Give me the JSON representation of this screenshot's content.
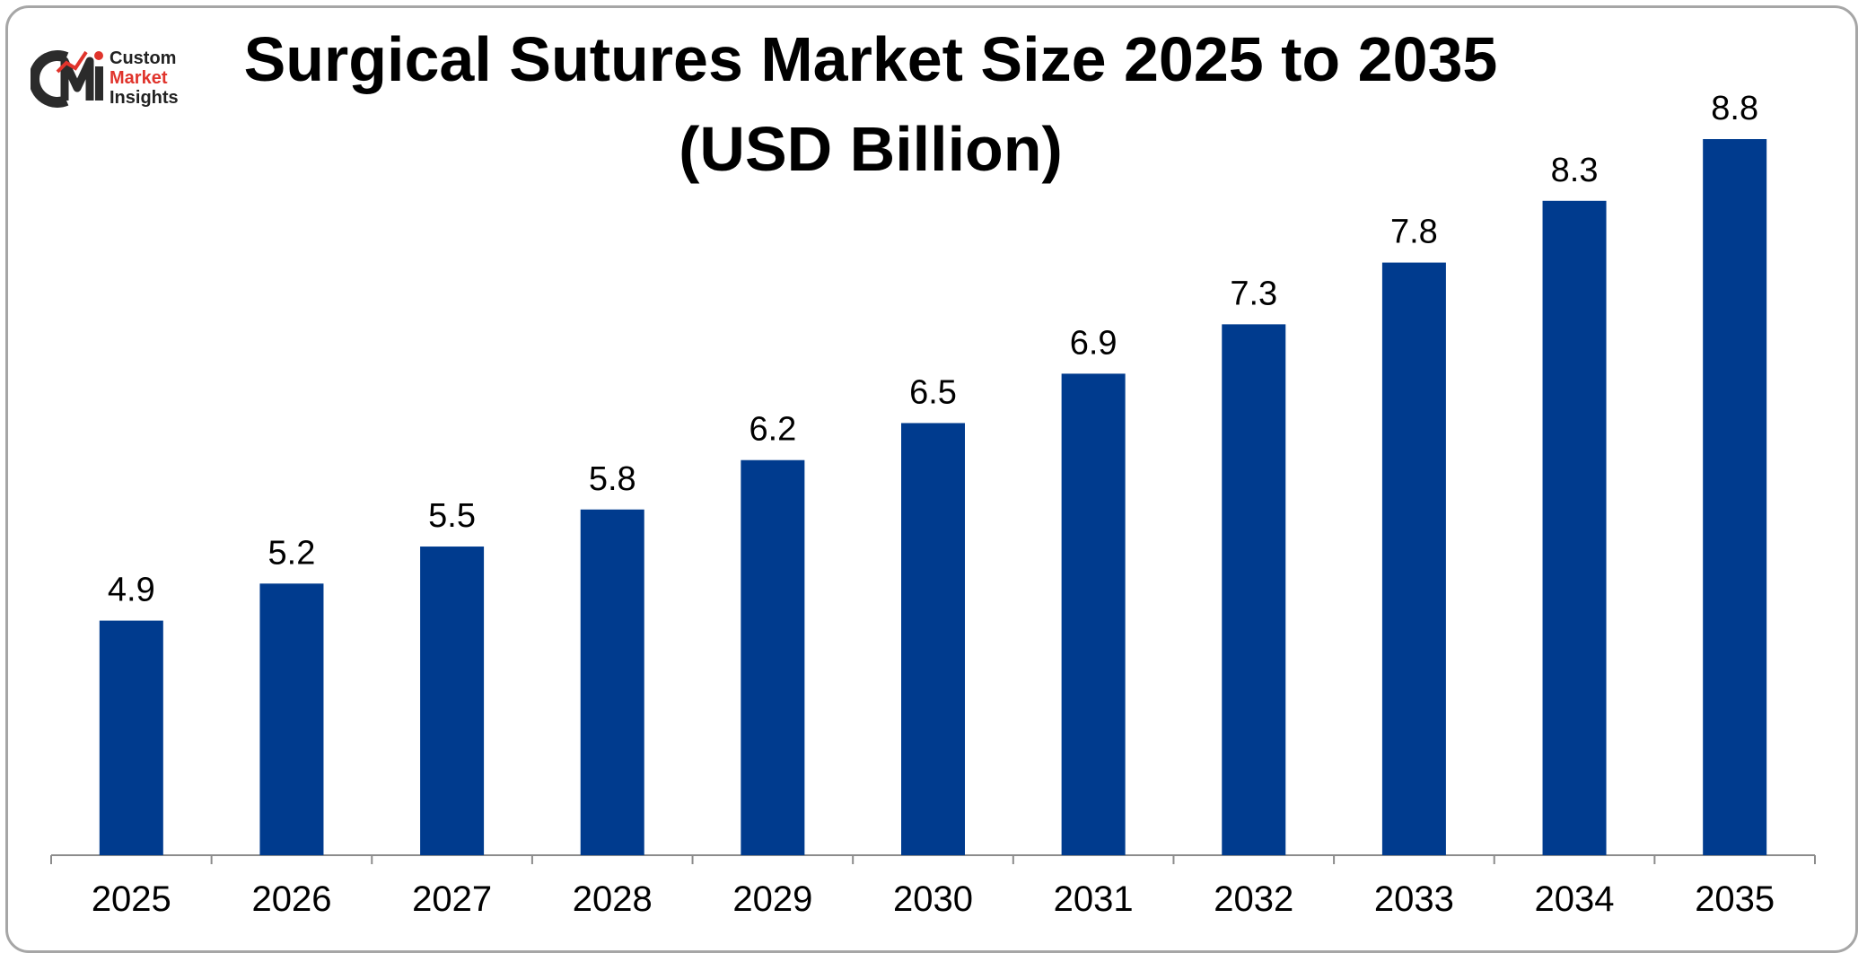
{
  "logo": {
    "mark_text": "CMI",
    "line1": "Custom",
    "line2": "Market",
    "line3": "Insights"
  },
  "chart_data": {
    "type": "bar",
    "title": "Surgical Sutures Market Size 2025 to 2035",
    "subtitle": "(USD Billion)",
    "categories": [
      "2025",
      "2026",
      "2027",
      "2028",
      "2029",
      "2030",
      "2031",
      "2032",
      "2033",
      "2034",
      "2035"
    ],
    "values": [
      4.9,
      5.2,
      5.5,
      5.8,
      6.2,
      6.5,
      6.9,
      7.3,
      7.8,
      8.3,
      8.8
    ],
    "value_labels": [
      "4.9",
      "5.2",
      "5.5",
      "5.8",
      "6.2",
      "6.5",
      "6.9",
      "7.3",
      "7.8",
      "8.3",
      "8.8"
    ],
    "xlabel": "",
    "ylabel": "",
    "ylim": [
      3.0,
      8.8
    ],
    "grid": false,
    "legend": "none",
    "bar_color": "#003b8e"
  }
}
